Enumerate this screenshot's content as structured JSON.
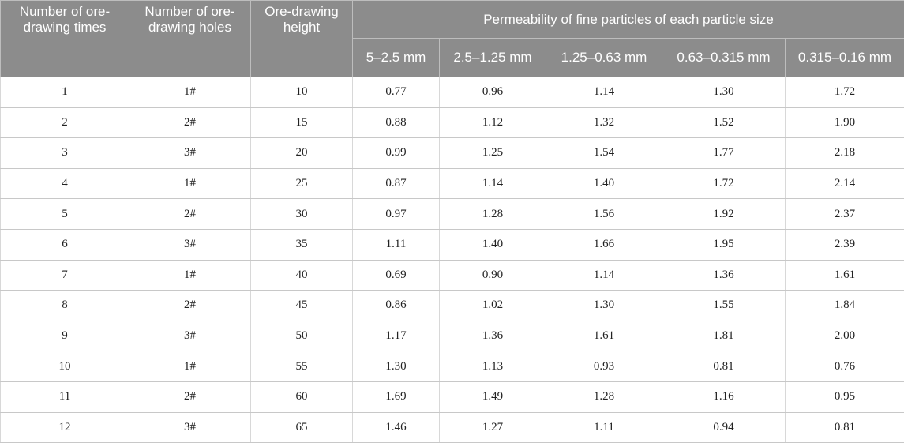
{
  "header": {
    "col_times": "Number of ore-drawing times",
    "col_holes": "Number of ore-drawing holes",
    "col_height": "Ore-drawing height",
    "group_title": "Permeability of fine particles of each particle size",
    "sizes": [
      "5–2.5 mm",
      "2.5–1.25 mm",
      "1.25–0.63 mm",
      "0.63–0.315 mm",
      "0.315–0.16 mm"
    ]
  },
  "rows": [
    [
      "1",
      "1#",
      "10",
      "0.77",
      "0.96",
      "1.14",
      "1.30",
      "1.72"
    ],
    [
      "2",
      "2#",
      "15",
      "0.88",
      "1.12",
      "1.32",
      "1.52",
      "1.90"
    ],
    [
      "3",
      "3#",
      "20",
      "0.99",
      "1.25",
      "1.54",
      "1.77",
      "2.18"
    ],
    [
      "4",
      "1#",
      "25",
      "0.87",
      "1.14",
      "1.40",
      "1.72",
      "2.14"
    ],
    [
      "5",
      "2#",
      "30",
      "0.97",
      "1.28",
      "1.56",
      "1.92",
      "2.37"
    ],
    [
      "6",
      "3#",
      "35",
      "1.11",
      "1.40",
      "1.66",
      "1.95",
      "2.39"
    ],
    [
      "7",
      "1#",
      "40",
      "0.69",
      "0.90",
      "1.14",
      "1.36",
      "1.61"
    ],
    [
      "8",
      "2#",
      "45",
      "0.86",
      "1.02",
      "1.30",
      "1.55",
      "1.84"
    ],
    [
      "9",
      "3#",
      "50",
      "1.17",
      "1.36",
      "1.61",
      "1.81",
      "2.00"
    ],
    [
      "10",
      "1#",
      "55",
      "1.30",
      "1.13",
      "0.93",
      "0.81",
      "0.76"
    ],
    [
      "11",
      "2#",
      "60",
      "1.69",
      "1.49",
      "1.28",
      "1.16",
      "0.95"
    ],
    [
      "12",
      "3#",
      "65",
      "1.46",
      "1.27",
      "1.11",
      "0.94",
      "0.81"
    ]
  ]
}
